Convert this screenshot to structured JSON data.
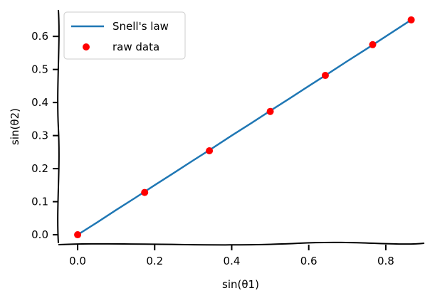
{
  "chart_data": {
    "type": "line",
    "xlabel": "sin(θ1)",
    "ylabel": "sin(θ2)",
    "xlim": [
      -0.05,
      0.9
    ],
    "ylim": [
      -0.03,
      0.68
    ],
    "x_ticks": [
      0.0,
      0.2,
      0.4,
      0.6,
      0.8
    ],
    "y_ticks": [
      0.0,
      0.1,
      0.2,
      0.3,
      0.4,
      0.5,
      0.6
    ],
    "x_tick_labels": [
      "0.0",
      "0.2",
      "0.4",
      "0.6",
      "0.8"
    ],
    "y_tick_labels": [
      "0.0",
      "0.1",
      "0.2",
      "0.3",
      "0.4",
      "0.5",
      "0.6"
    ],
    "legend_position": "top-left",
    "grid": false,
    "series": [
      {
        "name": "Snell's law",
        "kind": "line",
        "color": "#1f77b4",
        "x": [
          0.0,
          0.05,
          0.1,
          0.15,
          0.2,
          0.25,
          0.3,
          0.35,
          0.4,
          0.45,
          0.5,
          0.55,
          0.6,
          0.65,
          0.7,
          0.75,
          0.8,
          0.866
        ],
        "y": [
          0.0,
          0.037,
          0.075,
          0.112,
          0.15,
          0.187,
          0.225,
          0.262,
          0.3,
          0.337,
          0.375,
          0.412,
          0.45,
          0.487,
          0.525,
          0.562,
          0.6,
          0.65
        ]
      },
      {
        "name": "raw data",
        "kind": "scatter",
        "color": "#ff0000",
        "x": [
          0.0,
          0.174,
          0.342,
          0.5,
          0.643,
          0.766,
          0.866
        ],
        "y": [
          0.0,
          0.128,
          0.254,
          0.373,
          0.482,
          0.575,
          0.65
        ]
      }
    ]
  }
}
